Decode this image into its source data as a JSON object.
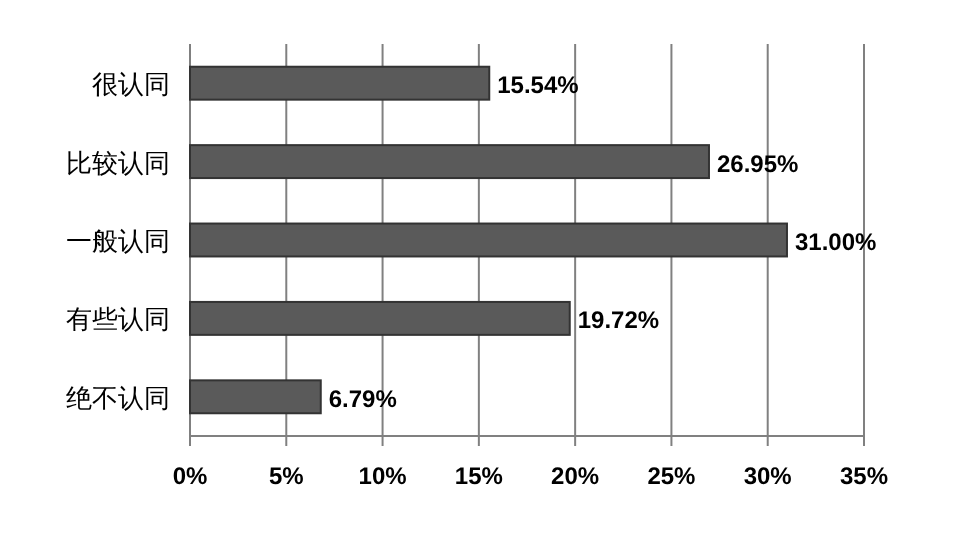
{
  "chart_data": {
    "type": "bar",
    "orientation": "horizontal",
    "categories": [
      "很认同",
      "比较认同",
      "一般认同",
      "有些认同",
      "绝不认同"
    ],
    "values": [
      15.54,
      26.95,
      31.0,
      19.72,
      6.79
    ],
    "color": "#5a5a5a",
    "value_labels": [
      "15.54%",
      "26.95%",
      "31.00%",
      "19.72%",
      "6.79%"
    ],
    "xlim": [
      0,
      35
    ],
    "xticks": [
      {
        "value": 0,
        "label": "0%"
      },
      {
        "value": 5,
        "label": "5%"
      },
      {
        "value": 10,
        "label": "10%"
      },
      {
        "value": 15,
        "label": "15%"
      },
      {
        "value": 20,
        "label": "20%"
      },
      {
        "value": 25,
        "label": "25%"
      },
      {
        "value": 30,
        "label": "30%"
      },
      {
        "value": 35,
        "label": "35%"
      }
    ],
    "grid": "x"
  }
}
